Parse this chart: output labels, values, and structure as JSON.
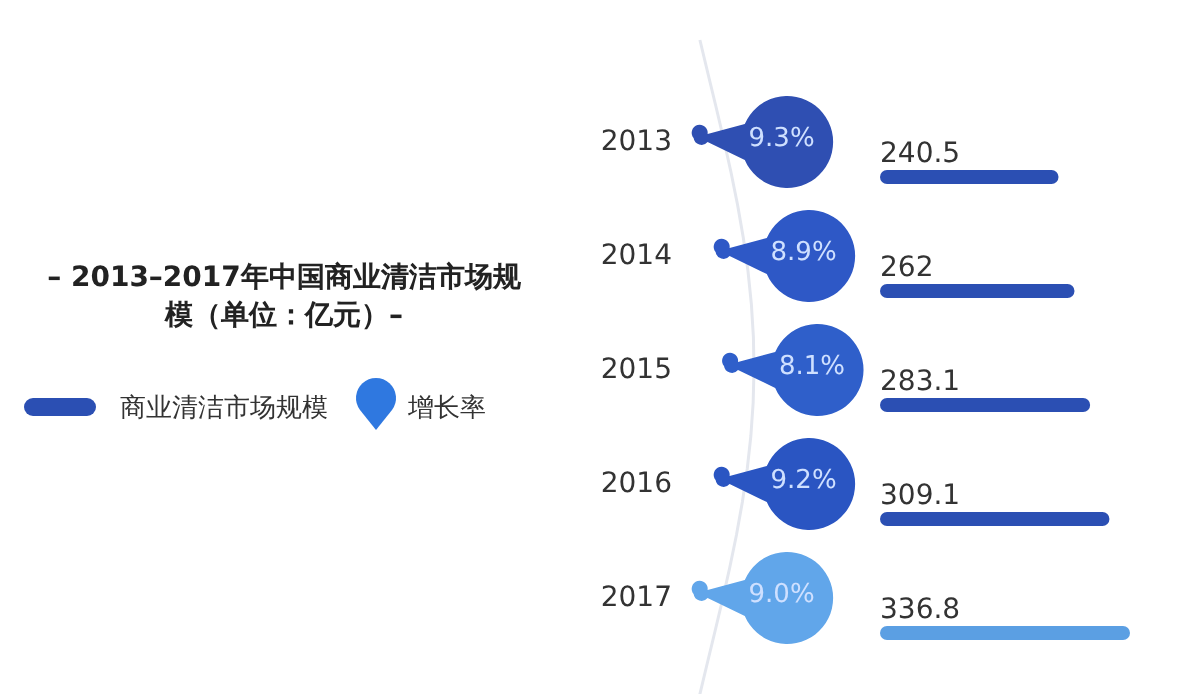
{
  "chart_data": [
    {
      "type": "bar",
      "orientation": "horizontal",
      "title": "– 2013–2017年中国商业清洁市场规模（单位：亿元）–",
      "legend": "left",
      "categories": [
        "2013",
        "2014",
        "2015",
        "2016",
        "2017"
      ],
      "series": [
        {
          "name": "商业清洁市场规模",
          "values": [
            240.5,
            262,
            283.1,
            309.1,
            336.8
          ],
          "value_labels": [
            "240.5",
            "262",
            "283.1",
            "309.1",
            "336.8"
          ],
          "colors": [
            "#2b4fb3",
            "#2b4fb3",
            "#2b4fb3",
            "#2b4fb3",
            "#5b9fe3"
          ]
        }
      ]
    },
    {
      "type": "other",
      "legend": "left",
      "series": [
        {
          "name": "增长率",
          "values": [
            9.3,
            8.9,
            8.1,
            9.2,
            9.0
          ],
          "value_labels": [
            "9.3%",
            "8.9%",
            "8.1%",
            "9.2%",
            "9.0%"
          ],
          "colors": [
            "#2f4fb2",
            "#2e58c6",
            "#2f5fca",
            "#2a55c2",
            "#61a6ea"
          ]
        }
      ]
    }
  ]
}
